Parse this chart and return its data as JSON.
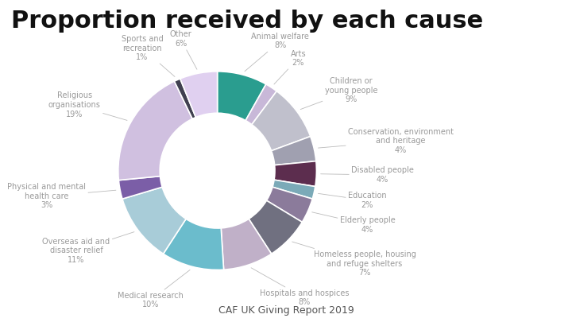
{
  "title": "Proportion received by each cause",
  "subtitle": "CAF UK Giving Report 2019",
  "categories": [
    "Animal welfare",
    "Arts",
    "Children or\nyoung people",
    "Conservation, environment\nand heritage",
    "Disabled people",
    "Education",
    "Elderly people",
    "Homeless people, housing\nand refuge shelters",
    "Hospitals and hospices",
    "Medical research",
    "Overseas aid and\ndisaster relief",
    "Physical and mental\nhealth care",
    "Religious\norganisations",
    "Sports and\nrecreation",
    "Other"
  ],
  "values": [
    8,
    2,
    9,
    4,
    4,
    2,
    4,
    7,
    8,
    10,
    11,
    3,
    19,
    1,
    6
  ],
  "colors": [
    "#2a9d8f",
    "#c8b8d8",
    "#c0c0cc",
    "#a0a0b0",
    "#5c2d4e",
    "#7baab8",
    "#8b7b9b",
    "#707080",
    "#c0b0c8",
    "#6bbccc",
    "#a8ccd8",
    "#7b5ea7",
    "#d0c0e0",
    "#404050",
    "#e0d0f0"
  ],
  "title_fontsize": 22,
  "subtitle_fontsize": 9,
  "label_fontsize": 7,
  "bg_color": "#ffffff",
  "text_color": "#999999",
  "label_color": "#999999"
}
